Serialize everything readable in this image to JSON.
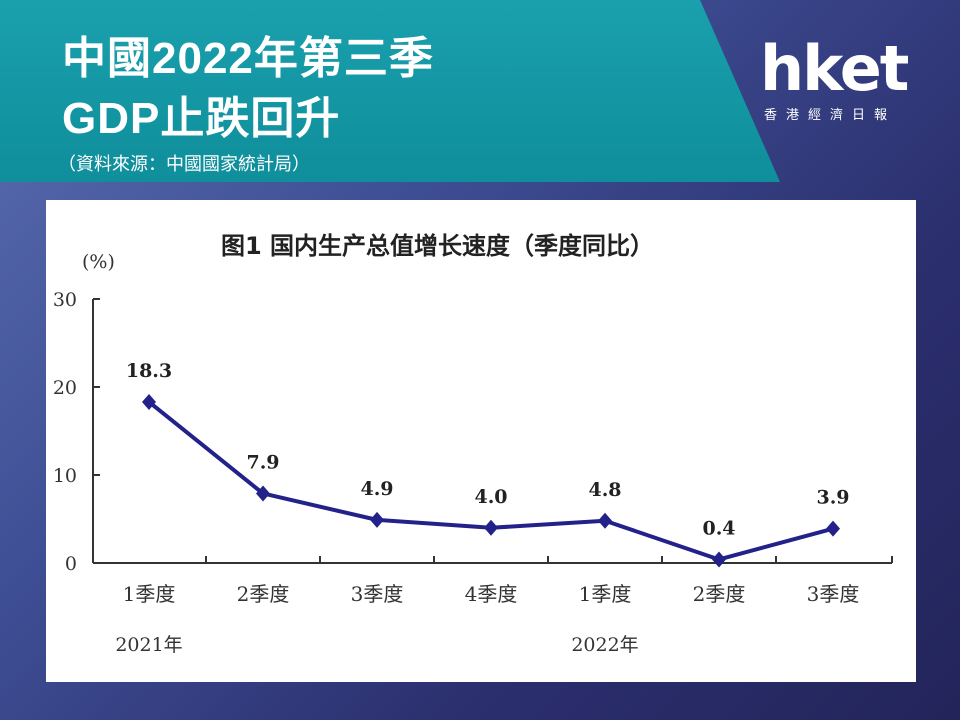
{
  "header": {
    "title_line1": "中國2022年第三季",
    "title_line2": "GDP止跌回升",
    "source": "（資料來源：中國國家統計局）"
  },
  "logo": {
    "main": "hket",
    "sub": "香港經濟日報"
  },
  "chart_data": {
    "type": "line",
    "title": "图1 国内生产总值增长速度（季度同比）",
    "ylabel": "(%)",
    "ylim": [
      0,
      30
    ],
    "yticks": [
      "0",
      "10",
      "20",
      "30"
    ],
    "categories": [
      "1季度",
      "2季度",
      "3季度",
      "4季度",
      "1季度",
      "2季度",
      "3季度"
    ],
    "year_labels": [
      {
        "label": "2021年",
        "at": 0
      },
      {
        "label": "2022年",
        "at": 4
      }
    ],
    "values": [
      18.3,
      7.9,
      4.9,
      4.0,
      4.8,
      0.4,
      3.9
    ],
    "value_labels": [
      "18.3",
      "7.9",
      "4.9",
      "4.0",
      "4.8",
      "0.4",
      "3.9"
    ],
    "line_color": "#22228a",
    "grid": false
  },
  "colors": {
    "banner": "#1398a6",
    "series": "#22228a"
  }
}
